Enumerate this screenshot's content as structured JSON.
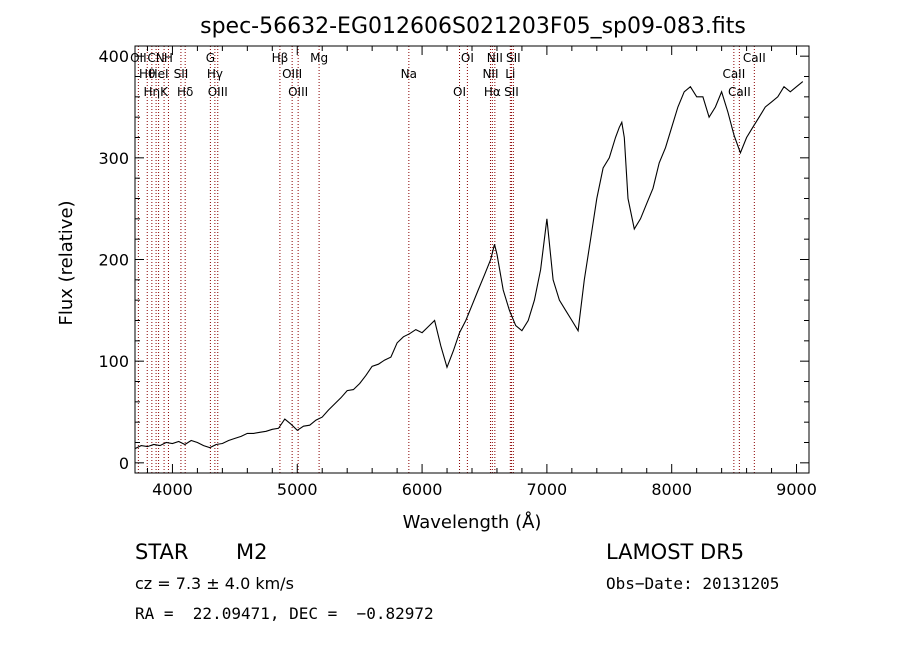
{
  "chart_data": {
    "type": "line",
    "title": "spec-56632-EG012606S021203F05_sp09-083.fits",
    "xlabel": "Wavelength (Å)",
    "ylabel": "Flux (relative)",
    "xlim": [
      3700,
      9100
    ],
    "ylim": [
      -10,
      410
    ],
    "xticks": [
      4000,
      5000,
      6000,
      7000,
      8000,
      9000
    ],
    "yticks": [
      0,
      100,
      200,
      300,
      400
    ],
    "grid": false,
    "line_color": "#000000",
    "marker_color": "#8b0000",
    "series": [
      {
        "x": [
          3700,
          3750,
          3800,
          3850,
          3900,
          3950,
          4000,
          4050,
          4100,
          4150,
          4200,
          4250,
          4300,
          4350,
          4400,
          4450,
          4500,
          4550,
          4600,
          4650,
          4700,
          4750,
          4800,
          4850,
          4900,
          4950,
          5000,
          5050,
          5100,
          5150,
          5200,
          5250,
          5300,
          5350,
          5400,
          5450,
          5500,
          5550,
          5600,
          5650,
          5700,
          5750,
          5800,
          5850,
          5900,
          5950,
          6000,
          6050,
          6100,
          6150,
          6200,
          6250,
          6300,
          6350,
          6400,
          6450,
          6500,
          6550,
          6580,
          6600,
          6650,
          6700,
          6750,
          6800,
          6850,
          6900,
          6950,
          7000,
          7050,
          7100,
          7150,
          7200,
          7250,
          7300,
          7350,
          7400,
          7450,
          7500,
          7550,
          7580,
          7600,
          7620,
          7650,
          7700,
          7750,
          7800,
          7850,
          7900,
          7950,
          8000,
          8050,
          8100,
          8150,
          8200,
          8250,
          8300,
          8350,
          8400,
          8450,
          8500,
          8550,
          8600,
          8650,
          8700,
          8750,
          8800,
          8850,
          8900,
          8950,
          9000,
          9050
        ],
        "y": [
          14,
          17,
          16,
          18,
          17,
          20,
          19,
          21,
          18,
          22,
          20,
          17,
          15,
          18,
          19,
          22,
          24,
          26,
          29,
          29,
          30,
          31,
          33,
          34,
          43,
          38,
          32,
          36,
          37,
          42,
          45,
          52,
          58,
          64,
          71,
          72,
          78,
          86,
          95,
          97,
          101,
          104,
          118,
          124,
          127,
          131,
          128,
          134,
          140,
          115,
          94,
          110,
          128,
          140,
          155,
          170,
          185,
          200,
          215,
          205,
          170,
          150,
          135,
          130,
          140,
          160,
          190,
          240,
          180,
          160,
          150,
          140,
          130,
          180,
          220,
          260,
          290,
          300,
          320,
          330,
          335,
          320,
          260,
          230,
          240,
          255,
          270,
          295,
          310,
          330,
          350,
          365,
          370,
          360,
          360,
          340,
          350,
          365,
          345,
          322,
          305,
          320,
          330,
          340,
          350,
          355,
          360,
          370,
          365,
          370,
          375
        ]
      }
    ],
    "line_markers": [
      {
        "wavelength": 3727,
        "label": "OII"
      },
      {
        "wavelength": 3798,
        "label": "Hθ"
      },
      {
        "wavelength": 3835,
        "label": "Hη"
      },
      {
        "wavelength": 3869,
        "label": "CN"
      },
      {
        "wavelength": 3889,
        "label": "HeI"
      },
      {
        "wavelength": 3933,
        "label": "K"
      },
      {
        "wavelength": 3968,
        "label": "H"
      },
      {
        "wavelength": 4068,
        "label": "SII"
      },
      {
        "wavelength": 4102,
        "label": "Hδ"
      },
      {
        "wavelength": 4304,
        "label": "G"
      },
      {
        "wavelength": 4340,
        "label": "Hγ"
      },
      {
        "wavelength": 4363,
        "label": "OIII"
      },
      {
        "wavelength": 4861,
        "label": "Hβ"
      },
      {
        "wavelength": 4959,
        "label": "OIII"
      },
      {
        "wavelength": 5007,
        "label": "OIII"
      },
      {
        "wavelength": 5175,
        "label": "Mg"
      },
      {
        "wavelength": 5894,
        "label": "Na"
      },
      {
        "wavelength": 6300,
        "label": "OI"
      },
      {
        "wavelength": 6363,
        "label": "OI"
      },
      {
        "wavelength": 6548,
        "label": "NII"
      },
      {
        "wavelength": 6563,
        "label": "Hα"
      },
      {
        "wavelength": 6583,
        "label": "NII"
      },
      {
        "wavelength": 6707,
        "label": "Li"
      },
      {
        "wavelength": 6716,
        "label": "SII"
      },
      {
        "wavelength": 6731,
        "label": "SII"
      },
      {
        "wavelength": 8498,
        "label": "CaII"
      },
      {
        "wavelength": 8542,
        "label": "CaII"
      },
      {
        "wavelength": 8662,
        "label": "CaII"
      }
    ]
  },
  "info": {
    "object_class": "STAR",
    "subclass": "M2",
    "cz_text": "cz = 7.3 ± 4.0 km/s",
    "coords_text": "RA =  22.09471, DEC =  −0.82972",
    "survey": "LAMOST DR5",
    "obs_date": "Obs−Date: 20131205"
  }
}
